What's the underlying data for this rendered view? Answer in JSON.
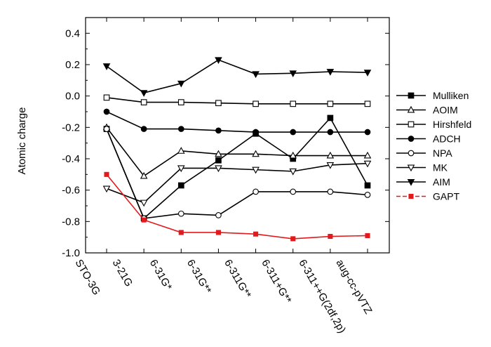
{
  "chart_data": {
    "type": "line",
    "ylabel": "Atomic charge",
    "xlabel": "",
    "categories": [
      "STO-3G",
      "3-21G",
      "6-31G*",
      "6-31G**",
      "6-311G**",
      "6-311+G**",
      "6-311++G(2df,2p)",
      "aug-cc-pVTZ"
    ],
    "ylim": [
      -1.0,
      0.5
    ],
    "yticks": [
      "0.4",
      "0.2",
      "0.0",
      "-0.2",
      "-0.4",
      "-0.6",
      "-0.8",
      "-1.0"
    ],
    "legend_position": "right",
    "series": [
      {
        "name": "Mulliken",
        "marker": "square-filled",
        "color": "#000000",
        "values": [
          -0.21,
          -0.78,
          -0.57,
          -0.41,
          -0.24,
          -0.4,
          -0.14,
          -0.57
        ]
      },
      {
        "name": "AOIM",
        "marker": "triangle-up-open",
        "color": "#000000",
        "values": [
          -0.2,
          -0.51,
          -0.35,
          -0.37,
          -0.37,
          -0.38,
          -0.38,
          -0.38
        ]
      },
      {
        "name": "Hirshfeld",
        "marker": "square-open",
        "color": "#000000",
        "values": [
          -0.01,
          -0.04,
          -0.04,
          -0.045,
          -0.05,
          -0.05,
          -0.05,
          -0.05
        ]
      },
      {
        "name": "ADCH",
        "marker": "circle-filled",
        "color": "#000000",
        "values": [
          -0.1,
          -0.21,
          -0.21,
          -0.22,
          -0.23,
          -0.23,
          -0.23,
          -0.23
        ]
      },
      {
        "name": "NPA",
        "marker": "circle-open",
        "color": "#000000",
        "values": [
          -0.21,
          -0.78,
          -0.75,
          -0.76,
          -0.61,
          -0.61,
          -0.61,
          -0.63
        ]
      },
      {
        "name": "MK",
        "marker": "triangle-down-open",
        "color": "#000000",
        "values": [
          -0.59,
          -0.68,
          -0.46,
          -0.46,
          -0.47,
          -0.48,
          -0.44,
          -0.43
        ]
      },
      {
        "name": "AIM",
        "marker": "triangle-down-filled",
        "color": "#000000",
        "values": [
          0.19,
          0.02,
          0.08,
          0.23,
          0.14,
          0.145,
          0.155,
          0.15
        ]
      },
      {
        "name": "GAPT",
        "marker": "square-filled",
        "color": "#e31a1c",
        "values": [
          -0.5,
          -0.79,
          -0.87,
          -0.87,
          -0.88,
          -0.91,
          -0.895,
          -0.89
        ]
      }
    ]
  }
}
